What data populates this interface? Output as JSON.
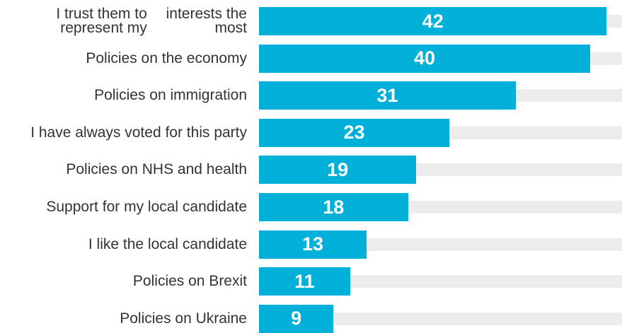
{
  "chart_data": {
    "type": "bar",
    "orientation": "horizontal",
    "categories": [
      "I trust them to represent my interests the most",
      "Policies on the economy",
      "Policies on immigration",
      "I have always voted for this party",
      "Policies on NHS and health",
      "Support for my local candidate",
      "I like the local candidate",
      "Policies on Brexit",
      "Policies on Ukraine"
    ],
    "values": [
      42,
      40,
      31,
      23,
      19,
      18,
      13,
      11,
      9
    ],
    "title": "",
    "xlabel": "",
    "ylabel": "",
    "xlim": [
      0,
      45
    ],
    "grid": false,
    "legend": "none",
    "bar_color": "#00b0d8",
    "track_color": "#ececec",
    "label_color": "#333333",
    "value_label_color": "#ffffff"
  }
}
